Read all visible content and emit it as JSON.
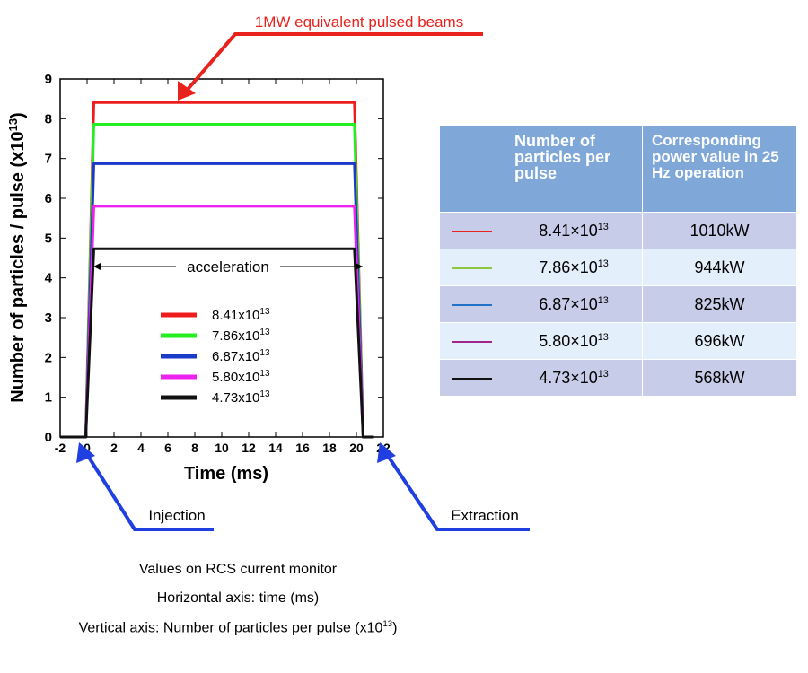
{
  "chart_data": {
    "type": "line",
    "title": "",
    "xlabel": "Time (ms)",
    "ylabel": "Number of particles / pulse (x10",
    "ylabel_exp": "13",
    "ylabel_close": ")",
    "xlim": [
      -2,
      22
    ],
    "ylim": [
      0,
      9
    ],
    "xticks": [
      -2,
      0,
      2,
      4,
      6,
      8,
      10,
      12,
      14,
      16,
      18,
      20,
      22
    ],
    "yticks": [
      0,
      1,
      2,
      3,
      4,
      5,
      6,
      7,
      8,
      9
    ],
    "injection_time": 0,
    "extraction_time": 20,
    "series": [
      {
        "name": "8.41x10",
        "exp": "13",
        "color": "#ee1c1c",
        "level": 8.41
      },
      {
        "name": "7.86x10",
        "exp": "13",
        "color": "#22ee22",
        "level": 7.86
      },
      {
        "name": "6.87x10",
        "exp": "13",
        "color": "#1a3ac8",
        "level": 6.87
      },
      {
        "name": "5.80x10",
        "exp": "13",
        "color": "#ee22ee",
        "level": 5.8
      },
      {
        "name": "4.73x10",
        "exp": "13",
        "color": "#111111",
        "level": 4.73
      }
    ],
    "legend_position": "center-left"
  },
  "annotations": {
    "top": "1MW equivalent pulsed beams",
    "acceleration": "acceleration",
    "injection": "Injection",
    "extraction": "Extraction",
    "arrow_red": "#e8231e",
    "arrow_blue": "#1f3fe0"
  },
  "captions": {
    "line1": "Values on RCS current monitor",
    "line2": "Horizontal axis: time (ms)",
    "line3": "Vertical axis: Number of particles per pulse (x10",
    "line3_exp": "13",
    "line3_close": ")"
  },
  "table": {
    "header": {
      "col1": "",
      "col2": "Number of particles per pulse",
      "col3": "Corresponding power value in 25 Hz operation"
    },
    "rows": [
      {
        "color": "#e8231e",
        "particles": "8.41×10",
        "exp": "13",
        "power": "1010kW"
      },
      {
        "color": "#8dc63f",
        "particles": "7.86×10",
        "exp": "13",
        "power": "944kW"
      },
      {
        "color": "#1f72c8",
        "particles": "6.87×10",
        "exp": "13",
        "power": "825kW"
      },
      {
        "color": "#a0238e",
        "particles": "5.80×10",
        "exp": "13",
        "power": "696kW"
      },
      {
        "color": "#111111",
        "particles": "4.73×10",
        "exp": "13",
        "power": "568kW"
      }
    ]
  }
}
